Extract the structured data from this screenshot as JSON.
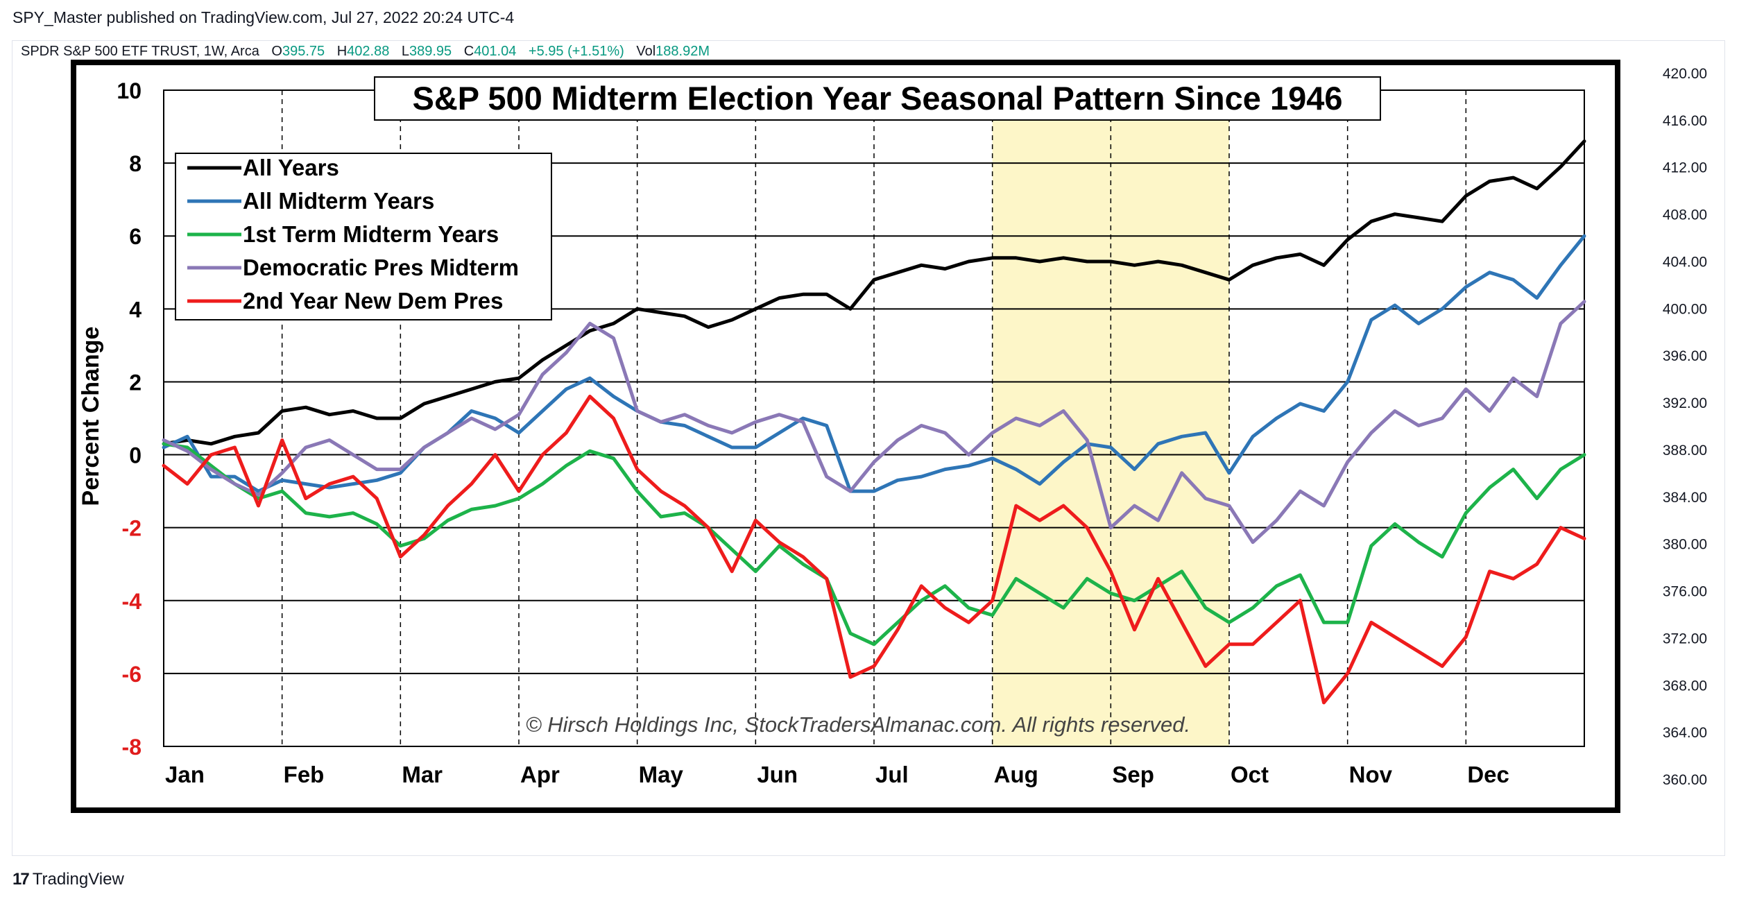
{
  "header": {
    "published": "SPY_Master published on TradingView.com, Jul 27, 2022 20:24 UTC-4"
  },
  "ticker": {
    "name": "SPDR S&P 500 ETF TRUST, 1W, Arca",
    "o_label": "O",
    "o": "395.75",
    "h_label": "H",
    "h": "402.88",
    "l_label": "L",
    "l": "389.95",
    "c_label": "C",
    "c": "401.04",
    "change": "+5.95 (+1.51%)",
    "vol_label": "Vol",
    "vol": "188.92M"
  },
  "price_axis": {
    "ticks": [
      "420.00",
      "416.00",
      "412.00",
      "408.00",
      "404.00",
      "400.00",
      "396.00",
      "392.00",
      "388.00",
      "384.00",
      "380.00",
      "376.00",
      "372.00",
      "368.00",
      "364.00",
      "360.00"
    ]
  },
  "footer": {
    "brand": "TradingView"
  },
  "chart_data": {
    "type": "line",
    "title": "S&P 500 Midterm Election Year  Seasonal Pattern Since 1946",
    "ylabel": "Percent Change",
    "xlabel": "",
    "ylim": [
      -8,
      10
    ],
    "yticks": [
      10,
      8,
      6,
      4,
      2,
      0,
      -2,
      -4,
      -6,
      -8
    ],
    "categories": [
      "Jan",
      "Feb",
      "Mar",
      "Apr",
      "May",
      "Jun",
      "Jul",
      "Aug",
      "Sep",
      "Oct",
      "Nov",
      "Dec"
    ],
    "highlight": {
      "from_month": 7,
      "to_month": 9,
      "color": "#fdf6c8"
    },
    "watermark": "© Hirsch Holdings Inc, StockTradersAlmanac.com. All rights reserved.",
    "grid": true,
    "legend_position": "top-left",
    "series": [
      {
        "name": "All Years",
        "color": "#000000",
        "x": [
          0,
          0.2,
          0.4,
          0.6,
          0.8,
          1.0,
          1.2,
          1.4,
          1.6,
          1.8,
          2.0,
          2.2,
          2.4,
          2.6,
          2.8,
          3.0,
          3.2,
          3.4,
          3.6,
          3.8,
          4.0,
          4.2,
          4.4,
          4.6,
          4.8,
          5.0,
          5.2,
          5.4,
          5.6,
          5.8,
          6.0,
          6.2,
          6.4,
          6.6,
          6.8,
          7.0,
          7.2,
          7.4,
          7.6,
          7.8,
          8.0,
          8.2,
          8.4,
          8.6,
          8.8,
          9.0,
          9.2,
          9.4,
          9.6,
          9.8,
          10.0,
          10.2,
          10.4,
          10.6,
          10.8,
          11.0,
          11.2,
          11.4,
          11.6,
          11.8,
          12.0
        ],
        "y": [
          0.3,
          0.4,
          0.3,
          0.5,
          0.6,
          1.2,
          1.3,
          1.1,
          1.2,
          1.0,
          1.0,
          1.4,
          1.6,
          1.8,
          2.0,
          2.1,
          2.6,
          3.0,
          3.4,
          3.6,
          4.0,
          3.9,
          3.8,
          3.5,
          3.7,
          4.0,
          4.3,
          4.4,
          4.4,
          4.0,
          4.8,
          5.0,
          5.2,
          5.1,
          5.3,
          5.4,
          5.4,
          5.3,
          5.4,
          5.3,
          5.3,
          5.2,
          5.3,
          5.2,
          5.0,
          4.8,
          5.2,
          5.4,
          5.5,
          5.2,
          5.9,
          6.4,
          6.6,
          6.5,
          6.4,
          7.1,
          7.5,
          7.6,
          7.3,
          7.9,
          8.6
        ]
      },
      {
        "name": "All Midterm Years",
        "color": "#2e75b6",
        "x": [
          0,
          0.2,
          0.4,
          0.6,
          0.8,
          1.0,
          1.2,
          1.4,
          1.6,
          1.8,
          2.0,
          2.2,
          2.4,
          2.6,
          2.8,
          3.0,
          3.2,
          3.4,
          3.6,
          3.8,
          4.0,
          4.2,
          4.4,
          4.6,
          4.8,
          5.0,
          5.2,
          5.4,
          5.6,
          5.8,
          6.0,
          6.2,
          6.4,
          6.6,
          6.8,
          7.0,
          7.2,
          7.4,
          7.6,
          7.8,
          8.0,
          8.2,
          8.4,
          8.6,
          8.8,
          9.0,
          9.2,
          9.4,
          9.6,
          9.8,
          10.0,
          10.2,
          10.4,
          10.6,
          10.8,
          11.0,
          11.2,
          11.4,
          11.6,
          11.8,
          12.0
        ],
        "y": [
          0.2,
          0.5,
          -0.6,
          -0.6,
          -1.0,
          -0.7,
          -0.8,
          -0.9,
          -0.8,
          -0.7,
          -0.5,
          0.2,
          0.6,
          1.2,
          1.0,
          0.6,
          1.2,
          1.8,
          2.1,
          1.6,
          1.2,
          0.9,
          0.8,
          0.5,
          0.2,
          0.2,
          0.6,
          1.0,
          0.8,
          -1.0,
          -1.0,
          -0.7,
          -0.6,
          -0.4,
          -0.3,
          -0.1,
          -0.4,
          -0.8,
          -0.2,
          0.3,
          0.2,
          -0.4,
          0.3,
          0.5,
          0.6,
          -0.5,
          0.5,
          1.0,
          1.4,
          1.2,
          2.0,
          3.7,
          4.1,
          3.6,
          4.0,
          4.6,
          5.0,
          4.8,
          4.3,
          5.2,
          6.0
        ]
      },
      {
        "name": "1st Term Midterm Years",
        "color": "#1db34a",
        "x": [
          0,
          0.2,
          0.4,
          0.6,
          0.8,
          1.0,
          1.2,
          1.4,
          1.6,
          1.8,
          2.0,
          2.2,
          2.4,
          2.6,
          2.8,
          3.0,
          3.2,
          3.4,
          3.6,
          3.8,
          4.0,
          4.2,
          4.4,
          4.6,
          4.8,
          5.0,
          5.2,
          5.4,
          5.6,
          5.8,
          6.0,
          6.2,
          6.4,
          6.6,
          6.8,
          7.0,
          7.2,
          7.4,
          7.6,
          7.8,
          8.0,
          8.2,
          8.4,
          8.6,
          8.8,
          9.0,
          9.2,
          9.4,
          9.6,
          9.8,
          10.0,
          10.2,
          10.4,
          10.6,
          10.8,
          11.0,
          11.2,
          11.4,
          11.6,
          11.8,
          12.0
        ],
        "y": [
          0.3,
          0.2,
          -0.3,
          -0.8,
          -1.2,
          -1.0,
          -1.6,
          -1.7,
          -1.6,
          -1.9,
          -2.5,
          -2.3,
          -1.8,
          -1.5,
          -1.4,
          -1.2,
          -0.8,
          -0.3,
          0.1,
          -0.1,
          -1.0,
          -1.7,
          -1.6,
          -2.0,
          -2.6,
          -3.2,
          -2.5,
          -3.0,
          -3.4,
          -4.9,
          -5.2,
          -4.6,
          -4.0,
          -3.6,
          -4.2,
          -4.4,
          -3.4,
          -3.8,
          -4.2,
          -3.4,
          -3.8,
          -4.0,
          -3.6,
          -3.2,
          -4.2,
          -4.6,
          -4.2,
          -3.6,
          -3.3,
          -4.6,
          -4.6,
          -2.5,
          -1.9,
          -2.4,
          -2.8,
          -1.6,
          -0.9,
          -0.4,
          -1.2,
          -0.4,
          0.0
        ]
      },
      {
        "name": "Democratic Pres Midterm",
        "color": "#8a78b6",
        "x": [
          0,
          0.2,
          0.4,
          0.6,
          0.8,
          1.0,
          1.2,
          1.4,
          1.6,
          1.8,
          2.0,
          2.2,
          2.4,
          2.6,
          2.8,
          3.0,
          3.2,
          3.4,
          3.6,
          3.8,
          4.0,
          4.2,
          4.4,
          4.6,
          4.8,
          5.0,
          5.2,
          5.4,
          5.6,
          5.8,
          6.0,
          6.2,
          6.4,
          6.6,
          6.8,
          7.0,
          7.2,
          7.4,
          7.6,
          7.8,
          8.0,
          8.2,
          8.4,
          8.6,
          8.8,
          9.0,
          9.2,
          9.4,
          9.6,
          9.8,
          10.0,
          10.2,
          10.4,
          10.6,
          10.8,
          11.0,
          11.2,
          11.4,
          11.6,
          11.8,
          12.0
        ],
        "y": [
          0.4,
          0.1,
          -0.4,
          -0.8,
          -1.1,
          -0.5,
          0.2,
          0.4,
          0.0,
          -0.4,
          -0.4,
          0.2,
          0.6,
          1.0,
          0.7,
          1.1,
          2.2,
          2.8,
          3.6,
          3.2,
          1.2,
          0.9,
          1.1,
          0.8,
          0.6,
          0.9,
          1.1,
          0.9,
          -0.6,
          -1.0,
          -0.2,
          0.4,
          0.8,
          0.6,
          0.0,
          0.6,
          1.0,
          0.8,
          1.2,
          0.4,
          -2.0,
          -1.4,
          -1.8,
          -0.5,
          -1.2,
          -1.4,
          -2.4,
          -1.8,
          -1.0,
          -1.4,
          -0.2,
          0.6,
          1.2,
          0.8,
          1.0,
          1.8,
          1.2,
          2.1,
          1.6,
          3.6,
          4.2
        ]
      },
      {
        "name": "2nd Year New Dem Pres",
        "color": "#ee1c1c",
        "x": [
          0,
          0.2,
          0.4,
          0.6,
          0.8,
          1.0,
          1.2,
          1.4,
          1.6,
          1.8,
          2.0,
          2.2,
          2.4,
          2.6,
          2.8,
          3.0,
          3.2,
          3.4,
          3.6,
          3.8,
          4.0,
          4.2,
          4.4,
          4.6,
          4.8,
          5.0,
          5.2,
          5.4,
          5.6,
          5.8,
          6.0,
          6.2,
          6.4,
          6.6,
          6.8,
          7.0,
          7.2,
          7.4,
          7.6,
          7.8,
          8.0,
          8.2,
          8.4,
          8.6,
          8.8,
          9.0,
          9.2,
          9.4,
          9.6,
          9.8,
          10.0,
          10.2,
          10.4,
          10.6,
          10.8,
          11.0,
          11.2,
          11.4,
          11.6,
          11.8,
          12.0
        ],
        "y": [
          -0.3,
          -0.8,
          0.0,
          0.2,
          -1.4,
          0.4,
          -1.2,
          -0.8,
          -0.6,
          -1.2,
          -2.8,
          -2.2,
          -1.4,
          -0.8,
          0.0,
          -1.0,
          0.0,
          0.6,
          1.6,
          1.0,
          -0.4,
          -1.0,
          -1.4,
          -2.0,
          -3.2,
          -1.8,
          -2.4,
          -2.8,
          -3.4,
          -6.1,
          -5.8,
          -4.8,
          -3.6,
          -4.2,
          -4.6,
          -4.0,
          -1.4,
          -1.8,
          -1.4,
          -2.0,
          -3.2,
          -4.8,
          -3.4,
          -4.6,
          -5.8,
          -5.2,
          -5.2,
          -4.6,
          -4.0,
          -6.8,
          -6.0,
          -4.6,
          -5.0,
          -5.4,
          -5.8,
          -5.0,
          -3.2,
          -3.4,
          -3.0,
          -2.0,
          -2.3
        ]
      }
    ]
  }
}
